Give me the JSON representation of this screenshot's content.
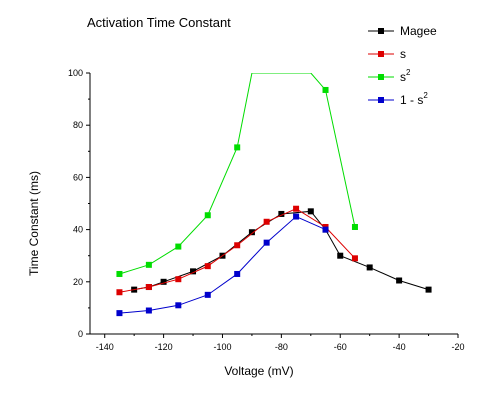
{
  "chart_data": {
    "type": "line",
    "title": "Activation Time Constant",
    "xlabel": "Voltage (mV)",
    "ylabel": "Time Constant (ms)",
    "xlim": [
      -145,
      -20
    ],
    "ylim": [
      0,
      100
    ],
    "xticks": [
      "-140",
      "-120",
      "-100",
      "-80",
      "-60",
      "-40",
      "-20"
    ],
    "xtick_values": [
      -140,
      -120,
      -100,
      -80,
      -60,
      -40,
      -20
    ],
    "yticks": [
      "0",
      "20",
      "40",
      "60",
      "80",
      "100"
    ],
    "ytick_values": [
      0,
      20,
      40,
      60,
      80,
      100
    ],
    "grid": false,
    "legend_position": "top-right",
    "series": [
      {
        "name": "Magee",
        "color": "#000000",
        "points": [
          [
            -130,
            17
          ],
          [
            -125,
            18
          ],
          [
            -120,
            20
          ],
          [
            -110,
            24
          ],
          [
            -100,
            30
          ],
          [
            -90,
            39
          ],
          [
            -80,
            46
          ],
          [
            -70,
            47
          ],
          [
            -65,
            40
          ],
          [
            -60,
            30
          ],
          [
            -50,
            25.5
          ],
          [
            -40,
            20.5
          ],
          [
            -30,
            17
          ]
        ]
      },
      {
        "name": "s",
        "color": "#dd0000",
        "points": [
          [
            -135,
            16
          ],
          [
            -125,
            18
          ],
          [
            -115,
            21
          ],
          [
            -105,
            26
          ],
          [
            -95,
            34
          ],
          [
            -85,
            43
          ],
          [
            -75,
            48
          ],
          [
            -65,
            41
          ],
          [
            -55,
            29
          ]
        ]
      },
      {
        "name": "s",
        "name_sup": "2",
        "color": "#00dd00",
        "points": [
          [
            -135,
            23
          ],
          [
            -125,
            26.5
          ],
          [
            -115,
            33.5
          ],
          [
            -105,
            45.5
          ],
          [
            -95,
            71.5
          ],
          [
            -90,
            100
          ],
          [
            -70,
            100
          ],
          [
            -65,
            93.5
          ],
          [
            -55,
            41
          ]
        ],
        "marker_points": [
          [
            -135,
            23
          ],
          [
            -125,
            26.5
          ],
          [
            -115,
            33.5
          ],
          [
            -105,
            45.5
          ],
          [
            -95,
            71.5
          ],
          [
            -65,
            93.5
          ],
          [
            -55,
            41
          ]
        ]
      },
      {
        "name": "1 - s",
        "name_sup": "2",
        "color": "#0000cc",
        "points": [
          [
            -135,
            8
          ],
          [
            -125,
            9
          ],
          [
            -115,
            11
          ],
          [
            -105,
            15
          ],
          [
            -95,
            23
          ],
          [
            -85,
            35
          ],
          [
            -75,
            45
          ],
          [
            -65,
            40
          ]
        ]
      }
    ]
  }
}
